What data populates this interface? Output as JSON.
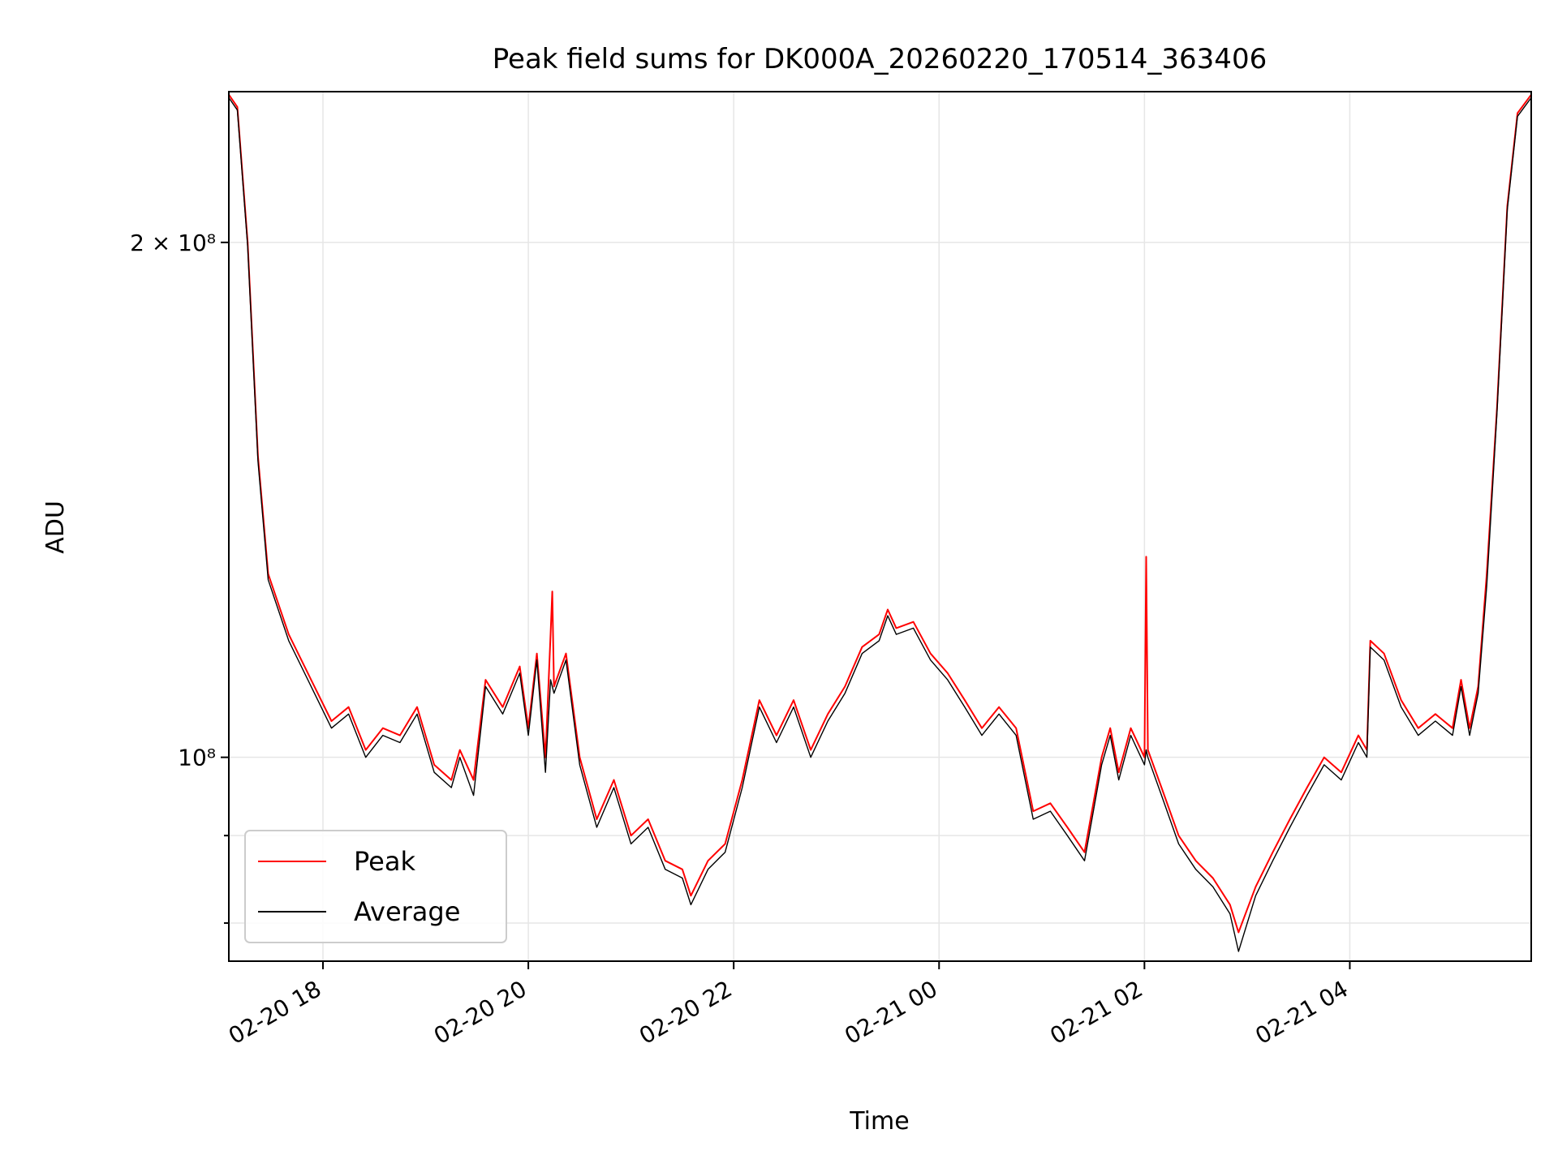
{
  "chart_data": {
    "type": "line",
    "title": "Peak field sums for DK000A_20260220_170514_363406",
    "xlabel": "Time",
    "ylabel": "ADU",
    "x_ticks": [
      "02-20 18",
      "02-20 20",
      "02-20 22",
      "02-21 00",
      "02-21 02",
      "02-21 04"
    ],
    "y_tick_labels": [
      "2 × 10⁸",
      "10⁸"
    ],
    "y_scale": "log",
    "grid": true,
    "legend_position": "lower-left",
    "x_range": [
      "2026-02-20 17:05",
      "2026-02-21 05:46"
    ],
    "ylim": [
      76000000,
      245000000
    ],
    "series": [
      {
        "name": "Peak",
        "color": "#ff0000",
        "points": [
          [
            "2026-02-20 17:05",
            244000000
          ],
          [
            "2026-02-20 17:10",
            240000000
          ],
          [
            "2026-02-20 17:16",
            200000000
          ],
          [
            "2026-02-20 17:22",
            150000000
          ],
          [
            "2026-02-20 17:28",
            128000000
          ],
          [
            "2026-02-20 17:40",
            118000000
          ],
          [
            "2026-02-20 17:55",
            110000000
          ],
          [
            "2026-02-20 18:05",
            105000000
          ],
          [
            "2026-02-20 18:15",
            107000000
          ],
          [
            "2026-02-20 18:25",
            101000000
          ],
          [
            "2026-02-20 18:35",
            104000000
          ],
          [
            "2026-02-20 18:45",
            103000000
          ],
          [
            "2026-02-20 18:55",
            107000000
          ],
          [
            "2026-02-20 19:05",
            99000000
          ],
          [
            "2026-02-20 19:15",
            97000000
          ],
          [
            "2026-02-20 19:20",
            101000000
          ],
          [
            "2026-02-20 19:28",
            97000000
          ],
          [
            "2026-02-20 19:35",
            111000000
          ],
          [
            "2026-02-20 19:45",
            107000000
          ],
          [
            "2026-02-20 19:55",
            113000000
          ],
          [
            "2026-02-20 20:00",
            104000000
          ],
          [
            "2026-02-20 20:05",
            115000000
          ],
          [
            "2026-02-20 20:10",
            100000000
          ],
          [
            "2026-02-20 20:13",
            118000000
          ],
          [
            "2026-02-20 20:14",
            125000000
          ],
          [
            "2026-02-20 20:15",
            110000000
          ],
          [
            "2026-02-20 20:22",
            115000000
          ],
          [
            "2026-02-20 20:30",
            100000000
          ],
          [
            "2026-02-20 20:40",
            92000000
          ],
          [
            "2026-02-20 20:50",
            97000000
          ],
          [
            "2026-02-20 21:00",
            90000000
          ],
          [
            "2026-02-20 21:10",
            92000000
          ],
          [
            "2026-02-20 21:20",
            87000000
          ],
          [
            "2026-02-20 21:30",
            86000000
          ],
          [
            "2026-02-20 21:35",
            83000000
          ],
          [
            "2026-02-20 21:45",
            87000000
          ],
          [
            "2026-02-20 21:55",
            89000000
          ],
          [
            "2026-02-20 22:05",
            97000000
          ],
          [
            "2026-02-20 22:15",
            108000000
          ],
          [
            "2026-02-20 22:25",
            103000000
          ],
          [
            "2026-02-20 22:35",
            108000000
          ],
          [
            "2026-02-20 22:45",
            101000000
          ],
          [
            "2026-02-20 22:55",
            106000000
          ],
          [
            "2026-02-20 23:05",
            110000000
          ],
          [
            "2026-02-20 23:15",
            116000000
          ],
          [
            "2026-02-20 23:25",
            118000000
          ],
          [
            "2026-02-20 23:30",
            122000000
          ],
          [
            "2026-02-20 23:35",
            119000000
          ],
          [
            "2026-02-20 23:45",
            120000000
          ],
          [
            "2026-02-20 23:55",
            115000000
          ],
          [
            "2026-02-21 00:05",
            112000000
          ],
          [
            "2026-02-21 00:15",
            108000000
          ],
          [
            "2026-02-21 00:25",
            104000000
          ],
          [
            "2026-02-21 00:35",
            107000000
          ],
          [
            "2026-02-21 00:45",
            104000000
          ],
          [
            "2026-02-21 00:55",
            93000000
          ],
          [
            "2026-02-21 01:05",
            94000000
          ],
          [
            "2026-02-21 01:15",
            91000000
          ],
          [
            "2026-02-21 01:25",
            88000000
          ],
          [
            "2026-02-21 01:35",
            100000000
          ],
          [
            "2026-02-21 01:40",
            104000000
          ],
          [
            "2026-02-21 01:45",
            98000000
          ],
          [
            "2026-02-21 01:52",
            104000000
          ],
          [
            "2026-02-21 02:00",
            100000000
          ],
          [
            "2026-02-21 02:01",
            131000000
          ],
          [
            "2026-02-21 02:02",
            101000000
          ],
          [
            "2026-02-21 02:10",
            96000000
          ],
          [
            "2026-02-21 02:20",
            90000000
          ],
          [
            "2026-02-21 02:30",
            87000000
          ],
          [
            "2026-02-21 02:40",
            85000000
          ],
          [
            "2026-02-21 02:50",
            82000000
          ],
          [
            "2026-02-21 02:55",
            79000000
          ],
          [
            "2026-02-21 03:05",
            84000000
          ],
          [
            "2026-02-21 03:15",
            88000000
          ],
          [
            "2026-02-21 03:25",
            92000000
          ],
          [
            "2026-02-21 03:35",
            96000000
          ],
          [
            "2026-02-21 03:45",
            100000000
          ],
          [
            "2026-02-21 03:55",
            98000000
          ],
          [
            "2026-02-21 04:05",
            103000000
          ],
          [
            "2026-02-21 04:10",
            101000000
          ],
          [
            "2026-02-21 04:12",
            117000000
          ],
          [
            "2026-02-21 04:20",
            115000000
          ],
          [
            "2026-02-21 04:30",
            108000000
          ],
          [
            "2026-02-21 04:40",
            104000000
          ],
          [
            "2026-02-21 04:50",
            106000000
          ],
          [
            "2026-02-21 05:00",
            104000000
          ],
          [
            "2026-02-21 05:05",
            111000000
          ],
          [
            "2026-02-21 05:10",
            104000000
          ],
          [
            "2026-02-21 05:15",
            110000000
          ],
          [
            "2026-02-21 05:20",
            128000000
          ],
          [
            "2026-02-21 05:26",
            160000000
          ],
          [
            "2026-02-21 05:32",
            210000000
          ],
          [
            "2026-02-21 05:38",
            238000000
          ],
          [
            "2026-02-21 05:46",
            244000000
          ]
        ]
      },
      {
        "name": "Average",
        "color": "#000000",
        "points": [
          [
            "2026-02-20 17:05",
            243000000
          ],
          [
            "2026-02-20 17:10",
            239000000
          ],
          [
            "2026-02-20 17:16",
            199000000
          ],
          [
            "2026-02-20 17:22",
            149000000
          ],
          [
            "2026-02-20 17:28",
            127000000
          ],
          [
            "2026-02-20 17:40",
            117000000
          ],
          [
            "2026-02-20 17:55",
            109000000
          ],
          [
            "2026-02-20 18:05",
            104000000
          ],
          [
            "2026-02-20 18:15",
            106000000
          ],
          [
            "2026-02-20 18:25",
            100000000
          ],
          [
            "2026-02-20 18:35",
            103000000
          ],
          [
            "2026-02-20 18:45",
            102000000
          ],
          [
            "2026-02-20 18:55",
            106000000
          ],
          [
            "2026-02-20 19:05",
            98000000
          ],
          [
            "2026-02-20 19:15",
            96000000
          ],
          [
            "2026-02-20 19:20",
            100000000
          ],
          [
            "2026-02-20 19:28",
            95000000
          ],
          [
            "2026-02-20 19:35",
            110000000
          ],
          [
            "2026-02-20 19:45",
            106000000
          ],
          [
            "2026-02-20 19:55",
            112000000
          ],
          [
            "2026-02-20 20:00",
            103000000
          ],
          [
            "2026-02-20 20:05",
            114000000
          ],
          [
            "2026-02-20 20:10",
            98000000
          ],
          [
            "2026-02-20 20:13",
            111000000
          ],
          [
            "2026-02-20 20:14",
            110000000
          ],
          [
            "2026-02-20 20:15",
            109000000
          ],
          [
            "2026-02-20 20:22",
            114000000
          ],
          [
            "2026-02-20 20:30",
            99000000
          ],
          [
            "2026-02-20 20:40",
            91000000
          ],
          [
            "2026-02-20 20:50",
            96000000
          ],
          [
            "2026-02-20 21:00",
            89000000
          ],
          [
            "2026-02-20 21:10",
            91000000
          ],
          [
            "2026-02-20 21:20",
            86000000
          ],
          [
            "2026-02-20 21:30",
            85000000
          ],
          [
            "2026-02-20 21:35",
            82000000
          ],
          [
            "2026-02-20 21:45",
            86000000
          ],
          [
            "2026-02-20 21:55",
            88000000
          ],
          [
            "2026-02-20 22:05",
            96000000
          ],
          [
            "2026-02-20 22:15",
            107000000
          ],
          [
            "2026-02-20 22:25",
            102000000
          ],
          [
            "2026-02-20 22:35",
            107000000
          ],
          [
            "2026-02-20 22:45",
            100000000
          ],
          [
            "2026-02-20 22:55",
            105000000
          ],
          [
            "2026-02-20 23:05",
            109000000
          ],
          [
            "2026-02-20 23:15",
            115000000
          ],
          [
            "2026-02-20 23:25",
            117000000
          ],
          [
            "2026-02-20 23:30",
            121000000
          ],
          [
            "2026-02-20 23:35",
            118000000
          ],
          [
            "2026-02-20 23:45",
            119000000
          ],
          [
            "2026-02-20 23:55",
            114000000
          ],
          [
            "2026-02-21 00:05",
            111000000
          ],
          [
            "2026-02-21 00:15",
            107000000
          ],
          [
            "2026-02-21 00:25",
            103000000
          ],
          [
            "2026-02-21 00:35",
            106000000
          ],
          [
            "2026-02-21 00:45",
            103000000
          ],
          [
            "2026-02-21 00:55",
            92000000
          ],
          [
            "2026-02-21 01:05",
            93000000
          ],
          [
            "2026-02-21 01:15",
            90000000
          ],
          [
            "2026-02-21 01:25",
            87000000
          ],
          [
            "2026-02-21 01:35",
            99000000
          ],
          [
            "2026-02-21 01:40",
            103000000
          ],
          [
            "2026-02-21 01:45",
            97000000
          ],
          [
            "2026-02-21 01:52",
            103000000
          ],
          [
            "2026-02-21 02:00",
            99000000
          ],
          [
            "2026-02-21 02:01",
            101000000
          ],
          [
            "2026-02-21 02:02",
            100000000
          ],
          [
            "2026-02-21 02:10",
            95000000
          ],
          [
            "2026-02-21 02:20",
            89000000
          ],
          [
            "2026-02-21 02:30",
            86000000
          ],
          [
            "2026-02-21 02:40",
            84000000
          ],
          [
            "2026-02-21 02:50",
            81000000
          ],
          [
            "2026-02-21 02:55",
            77000000
          ],
          [
            "2026-02-21 03:05",
            83000000
          ],
          [
            "2026-02-21 03:15",
            87000000
          ],
          [
            "2026-02-21 03:25",
            91000000
          ],
          [
            "2026-02-21 03:35",
            95000000
          ],
          [
            "2026-02-21 03:45",
            99000000
          ],
          [
            "2026-02-21 03:55",
            97000000
          ],
          [
            "2026-02-21 04:05",
            102000000
          ],
          [
            "2026-02-21 04:10",
            100000000
          ],
          [
            "2026-02-21 04:12",
            116000000
          ],
          [
            "2026-02-21 04:20",
            114000000
          ],
          [
            "2026-02-21 04:30",
            107000000
          ],
          [
            "2026-02-21 04:40",
            103000000
          ],
          [
            "2026-02-21 04:50",
            105000000
          ],
          [
            "2026-02-21 05:00",
            103000000
          ],
          [
            "2026-02-21 05:05",
            110000000
          ],
          [
            "2026-02-21 05:10",
            103000000
          ],
          [
            "2026-02-21 05:15",
            109000000
          ],
          [
            "2026-02-21 05:20",
            126000000
          ],
          [
            "2026-02-21 05:26",
            159000000
          ],
          [
            "2026-02-21 05:32",
            209000000
          ],
          [
            "2026-02-21 05:38",
            237000000
          ],
          [
            "2026-02-21 05:46",
            243000000
          ]
        ]
      }
    ]
  }
}
